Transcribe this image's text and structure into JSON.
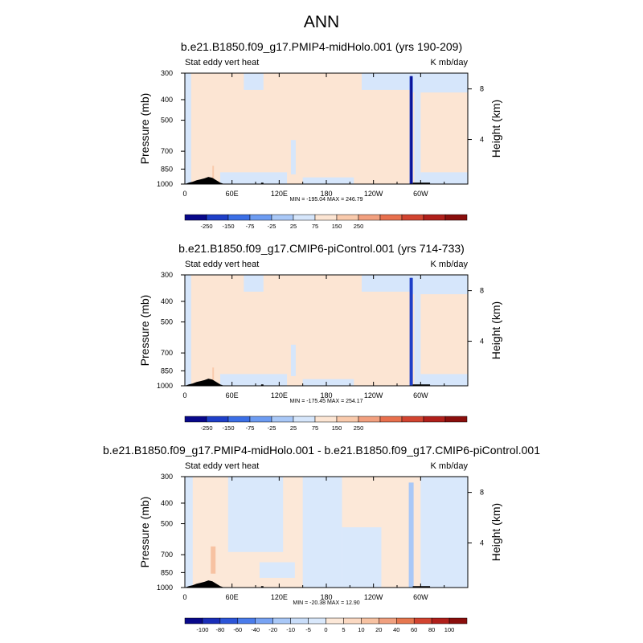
{
  "page_title": "ANN",
  "chart_data": [
    {
      "type": "heatmap",
      "title": "b.e21.B1850.f09_g17.PMIP4-midHolo.001 (yrs 190-209)",
      "left_label": "Stat eddy vert heat",
      "right_label": "K mb/day",
      "ylabel": "Pressure (mb)",
      "ylabel_right": "Height (km)",
      "x_ticks": [
        "0",
        "60E",
        "120E",
        "180",
        "120W",
        "60W"
      ],
      "x_tick_values": [
        0,
        60,
        120,
        180,
        240,
        300
      ],
      "xlim": [
        0,
        360
      ],
      "y_ticks": [
        "300",
        "400",
        "500",
        "700",
        "850",
        "1000"
      ],
      "y_tick_values": [
        300,
        400,
        500,
        700,
        850,
        1000
      ],
      "ylim": [
        1000,
        300
      ],
      "height_ticks": [
        "8",
        "4"
      ],
      "height_tick_values": [
        8,
        4
      ],
      "stats": "MIN = -195.04   MAX = 246.79",
      "colorbar_levels": [
        "-250",
        "-150",
        "-75",
        "-25",
        "25",
        "75",
        "150",
        "250"
      ],
      "colorbar_colors": [
        "#08088a",
        "#1e3fc8",
        "#3b6fe6",
        "#6d9cf2",
        "#a9c8f7",
        "#d6e6fb",
        "#fce5d3",
        "#f9caac",
        "#f2a07f",
        "#e8704d",
        "#d24430",
        "#b01f1a",
        "#8a0e0c"
      ],
      "features": [
        {
          "lon": 138,
          "p_top": 620,
          "p_bot": 900,
          "value": 40
        },
        {
          "lon": 36,
          "p_top": 820,
          "p_bot": 1000,
          "value": 120
        },
        {
          "lon": 288,
          "p_top": 310,
          "p_bot": 1000,
          "value": -180
        }
      ]
    },
    {
      "type": "heatmap",
      "title": "b.e21.B1850.f09_g17.CMIP6-piControl.001 (yrs 714-733)",
      "left_label": "Stat eddy vert heat",
      "right_label": "K mb/day",
      "ylabel": "Pressure (mb)",
      "ylabel_right": "Height (km)",
      "x_ticks": [
        "0",
        "60E",
        "120E",
        "180",
        "120W",
        "60W"
      ],
      "x_tick_values": [
        0,
        60,
        120,
        180,
        240,
        300
      ],
      "xlim": [
        0,
        360
      ],
      "y_ticks": [
        "300",
        "400",
        "500",
        "700",
        "850",
        "1000"
      ],
      "y_tick_values": [
        300,
        400,
        500,
        700,
        850,
        1000
      ],
      "ylim": [
        1000,
        300
      ],
      "height_ticks": [
        "8",
        "4"
      ],
      "height_tick_values": [
        8,
        4
      ],
      "stats": "MIN = -175.45   MAX = 254.17",
      "colorbar_levels": [
        "-250",
        "-150",
        "-75",
        "-25",
        "25",
        "75",
        "150",
        "250"
      ],
      "colorbar_colors": [
        "#08088a",
        "#1e3fc8",
        "#3b6fe6",
        "#6d9cf2",
        "#a9c8f7",
        "#d6e6fb",
        "#fce5d3",
        "#f9caac",
        "#f2a07f",
        "#e8704d",
        "#d24430",
        "#b01f1a",
        "#8a0e0c"
      ],
      "features": [
        {
          "lon": 138,
          "p_top": 640,
          "p_bot": 900,
          "value": 40
        },
        {
          "lon": 36,
          "p_top": 820,
          "p_bot": 1000,
          "value": 120
        },
        {
          "lon": 288,
          "p_top": 310,
          "p_bot": 1000,
          "value": -170
        }
      ]
    },
    {
      "type": "heatmap",
      "title": "b.e21.B1850.f09_g17.PMIP4-midHolo.001 - b.e21.B1850.f09_g17.CMIP6-piControl.001",
      "left_label": "Stat eddy vert heat",
      "right_label": "K mb/day",
      "ylabel": "Pressure (mb)",
      "ylabel_right": "Height (km)",
      "x_ticks": [
        "0",
        "60E",
        "120E",
        "180",
        "120W",
        "60W"
      ],
      "x_tick_values": [
        0,
        60,
        120,
        180,
        240,
        300
      ],
      "xlim": [
        0,
        360
      ],
      "y_ticks": [
        "300",
        "400",
        "500",
        "700",
        "850",
        "1000"
      ],
      "y_tick_values": [
        300,
        400,
        500,
        700,
        850,
        1000
      ],
      "ylim": [
        1000,
        300
      ],
      "height_ticks": [
        "8",
        "4"
      ],
      "height_tick_values": [
        8,
        4
      ],
      "stats": "MIN = -20.38   MAX =  12.90",
      "colorbar_levels": [
        "-100",
        "-80",
        "-60",
        "-40",
        "-20",
        "-10",
        "-5",
        "0",
        "5",
        "10",
        "20",
        "40",
        "60",
        "80",
        "100"
      ],
      "colorbar_colors": [
        "#08088a",
        "#1a2eb8",
        "#2c55d8",
        "#4a7ceb",
        "#78a3f3",
        "#a9c8f7",
        "#c9ddf9",
        "#d9e8fb",
        "#fce8d8",
        "#fbd9c2",
        "#f7c2a2",
        "#f0a07f",
        "#e6774f",
        "#d24430",
        "#b01f1a",
        "#8a0e0c"
      ],
      "features": [
        {
          "lon": 36,
          "p_top": 640,
          "p_bot": 860,
          "value": 15
        },
        {
          "lon": 288,
          "p_top": 320,
          "p_bot": 1000,
          "value": -15
        }
      ]
    }
  ]
}
